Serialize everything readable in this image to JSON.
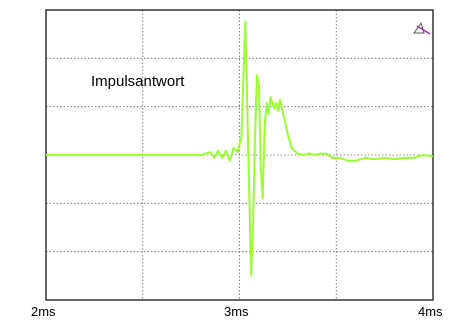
{
  "chart_data": {
    "type": "line",
    "annotation": "Impulsantwort",
    "x_tick_labels": [
      "2ms",
      "3ms",
      "4ms"
    ],
    "xlim": [
      2.0,
      4.0
    ],
    "ylim": [
      -1.0,
      1.0
    ],
    "x_divisions": 4,
    "y_divisions": 6,
    "grid": true,
    "series": [
      {
        "color": "#99ff33",
        "x": [
          2.0,
          2.8,
          2.85,
          2.87,
          2.89,
          2.91,
          2.93,
          2.95,
          2.97,
          2.99,
          3.01,
          3.03,
          3.045,
          3.06,
          3.07,
          3.08,
          3.09,
          3.1,
          3.11,
          3.12,
          3.13,
          3.14,
          3.15,
          3.16,
          3.18,
          3.19,
          3.2,
          3.21,
          3.23,
          3.25,
          3.27,
          3.3,
          3.33,
          3.36,
          3.39,
          3.42,
          3.45,
          3.48,
          3.52,
          3.56,
          3.6,
          3.65,
          3.7,
          3.75,
          3.8,
          3.85,
          3.9,
          3.95,
          4.0
        ],
        "y": [
          0.0,
          0.0,
          0.02,
          -0.02,
          0.03,
          -0.02,
          0.03,
          -0.04,
          0.05,
          0.02,
          0.12,
          0.92,
          0.05,
          -0.83,
          -0.5,
          0.12,
          0.55,
          0.48,
          -0.1,
          -0.3,
          0.2,
          0.36,
          0.28,
          0.4,
          0.32,
          0.36,
          0.3,
          0.38,
          0.26,
          0.14,
          0.05,
          0.01,
          0.0,
          0.01,
          0.0,
          0.01,
          0.01,
          -0.02,
          -0.02,
          -0.04,
          -0.04,
          -0.02,
          -0.03,
          -0.02,
          -0.03,
          -0.02,
          -0.02,
          0.0,
          -0.01
        ]
      }
    ]
  },
  "scope_icon": "triangle-probe-icon",
  "colors": {
    "trace": "#99ff33",
    "grid": "#666666",
    "frame": "#000000"
  }
}
